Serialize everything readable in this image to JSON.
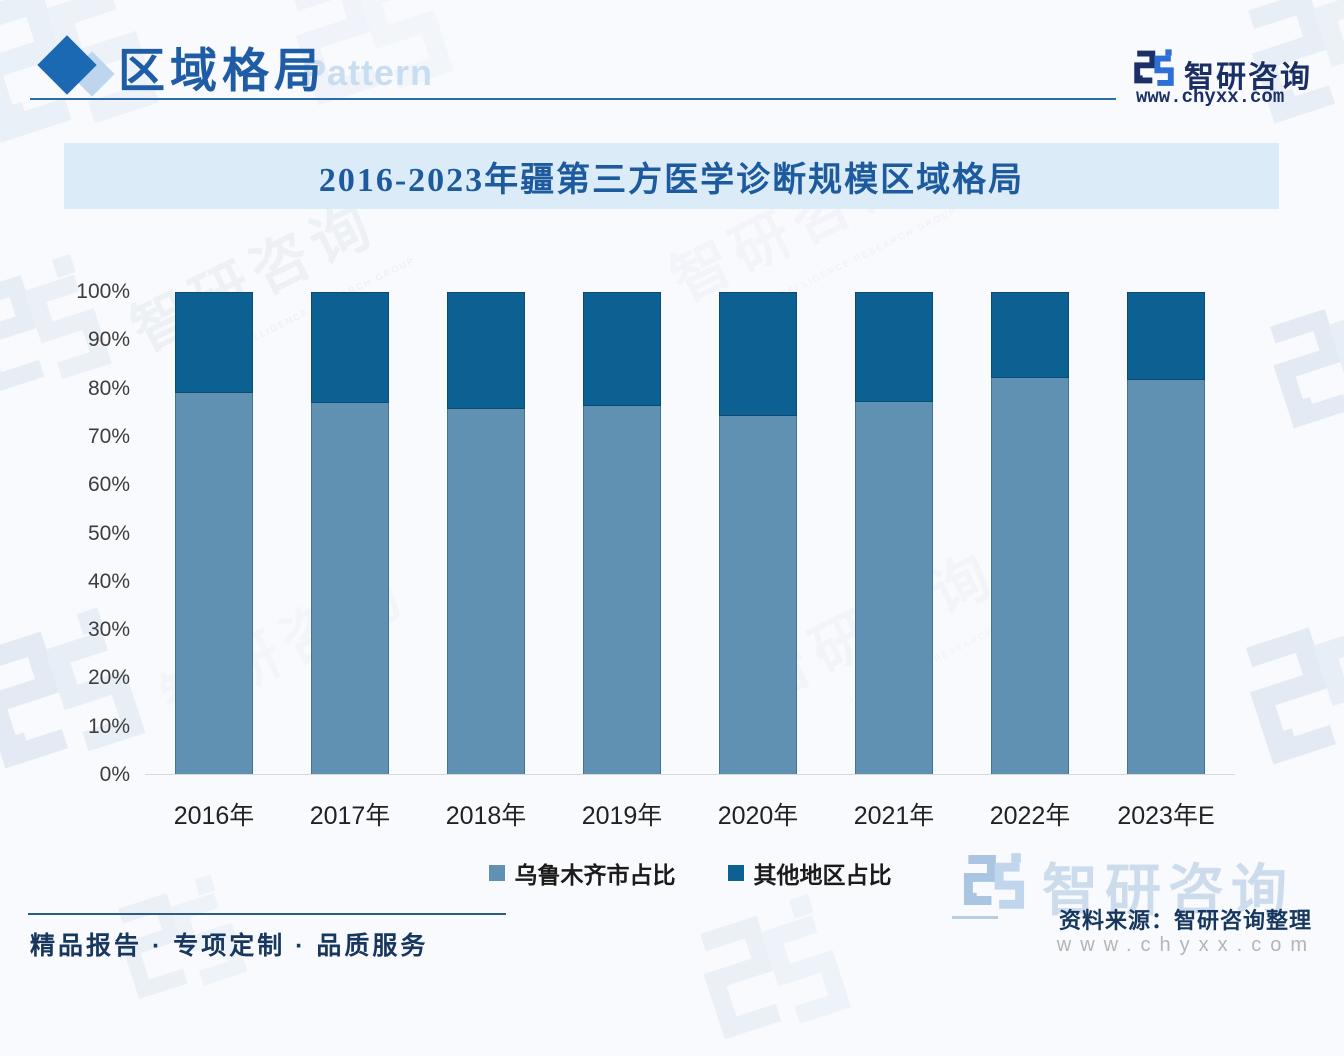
{
  "header": {
    "title": "区域格局",
    "subtitle_en": "Pattern",
    "brand_name": "智研咨询",
    "brand_url": "www.chyxx.com"
  },
  "banner": {
    "title": "2016-2023年疆第三方医学诊断规模区域格局"
  },
  "chart_data": {
    "type": "bar",
    "stacked": true,
    "title": "2016-2023年疆第三方医学诊断规模区域格局",
    "categories": [
      "2016年",
      "2017年",
      "2018年",
      "2019年",
      "2020年",
      "2021年",
      "2022年",
      "2023年E"
    ],
    "series": [
      {
        "name": "乌鲁木齐市占比",
        "color": "#6191b2",
        "values": [
          79,
          77,
          75.8,
          76.4,
          74.4,
          77.2,
          82.2,
          81.8
        ]
      },
      {
        "name": "其他地区占比",
        "color": "#0d6192",
        "values": [
          21,
          23,
          24.2,
          23.6,
          25.6,
          22.8,
          17.8,
          18.2
        ]
      }
    ],
    "ylim": [
      0,
      100
    ],
    "ytick_step": 10,
    "ytick_labels": [
      "0%",
      "10%",
      "20%",
      "30%",
      "40%",
      "50%",
      "60%",
      "70%",
      "80%",
      "90%",
      "100%"
    ],
    "xlabel": "",
    "ylabel": "",
    "grid": false,
    "legend_position": "bottom"
  },
  "footer": {
    "source": "资料来源：智研咨询整理",
    "tagline": "精品报告 · 专项定制 · 品质服务",
    "watermark_brand": "智研咨询",
    "watermark_url": "www.chyxx.com",
    "watermark_caption": "INTELLIGENCE RESEARCH GROUP"
  },
  "colors": {
    "accent_blue": "#1e5ca6",
    "banner_bg": "#dcebf8",
    "navy_text": "#17375e",
    "series_light": "#6191b2",
    "series_dark": "#0d6192"
  }
}
